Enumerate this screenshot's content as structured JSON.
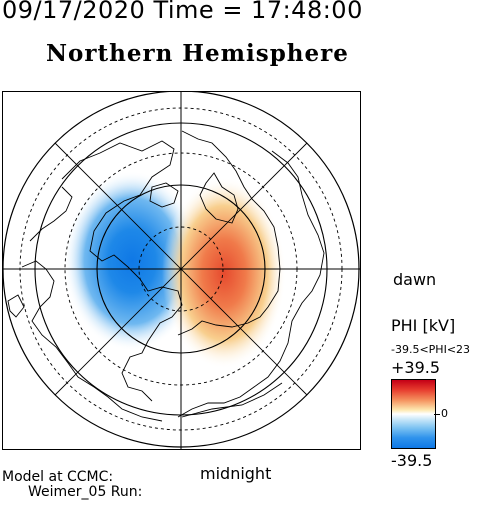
{
  "header": {
    "datetime": "09/17/2020 Time = 17:48:00",
    "hemisphere": "Northern Hemisphere"
  },
  "map": {
    "projection": "polar stereographic, north pole centered",
    "orientation_labels": {
      "dawn": "dawn",
      "midnight": "midnight"
    },
    "contours": {
      "negative_cell_color": "#1e88e8",
      "positive_cell_color": "#e64a2e"
    }
  },
  "colorbar": {
    "label": "PHI [kV]",
    "range_text": "-39.5<PHI<23",
    "max_label": "+39.5",
    "mid_label": "0",
    "min_label": "-39.5",
    "colors": [
      "#c40016",
      "#f59460",
      "#ffffff",
      "#7fc4f2",
      "#0f78e6"
    ]
  },
  "footer": {
    "model": "Model at CCMC:",
    "run": "Weimer_05 Run:"
  }
}
